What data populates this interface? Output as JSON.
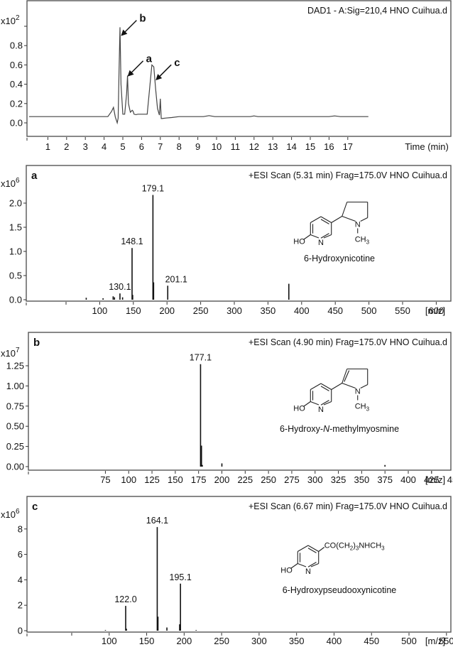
{
  "chart_data": [
    {
      "id": "chromatogram",
      "type": "line",
      "title": "DAD1 - A:Sig=210,4 HNO Cuihua.d",
      "xlabel": "Time (min)",
      "ylabel": "",
      "y_multiplier": "x10",
      "y_multiplier_exp": "2",
      "xlim": [
        0,
        18.1
      ],
      "ylim": [
        -0.12,
        1.05
      ],
      "x_ticks": [
        "1",
        "2",
        "3",
        "4",
        "5",
        "6",
        "7",
        "8",
        "9",
        "10",
        "11",
        "12",
        "13",
        "14",
        "15",
        "16",
        "17"
      ],
      "y_ticks": [
        "0.0",
        "0.2",
        "0.4",
        "0.6",
        "0.8"
      ],
      "grid": false,
      "x": [
        0,
        4.2,
        4.4,
        4.5,
        4.6,
        4.7,
        4.75,
        4.8,
        4.85,
        4.9,
        5.0,
        5.1,
        5.2,
        5.25,
        5.3,
        5.4,
        5.5,
        5.55,
        5.6,
        5.7,
        5.8,
        6.3,
        6.45,
        6.55,
        6.65,
        6.75,
        6.85,
        6.95,
        7.0,
        7.05,
        7.1,
        7.3,
        7.6,
        8.0,
        9.3,
        9.6,
        9.9,
        11.8,
        12.0,
        12.2,
        16.0,
        16.3,
        16.6,
        18.1
      ],
      "y": [
        0.065,
        0.065,
        0.12,
        0.16,
        0.06,
        0.0,
        0.05,
        0.55,
        0.99,
        0.4,
        0.09,
        0.09,
        0.3,
        0.49,
        0.2,
        0.11,
        0.13,
        0.12,
        0.09,
        0.085,
        0.09,
        0.09,
        0.4,
        0.6,
        0.58,
        0.35,
        0.15,
        0.08,
        0.25,
        0.045,
        0.045,
        0.05,
        0.055,
        0.065,
        0.065,
        0.075,
        0.065,
        0.065,
        0.072,
        0.065,
        0.065,
        0.072,
        0.065,
        0.065
      ],
      "annotations": [
        {
          "label": "b",
          "x": 4.9,
          "y": 0.9
        },
        {
          "label": "a",
          "x": 5.25,
          "y": 0.48
        },
        {
          "label": "c",
          "x": 6.75,
          "y": 0.44
        }
      ]
    },
    {
      "id": "ms-a",
      "type": "bar",
      "panel_label": "a",
      "title": "+ESI Scan (5.31 min) Frag=175.0V HNO Cuihua.d",
      "xlabel": "[m/z]",
      "y_multiplier": "x10",
      "y_multiplier_exp": "6",
      "xlim": [
        50,
        650
      ],
      "ylim": [
        0,
        2.3
      ],
      "x_ticks": [
        "100",
        "150",
        "200",
        "250",
        "300",
        "350",
        "400",
        "450",
        "500",
        "550",
        "600"
      ],
      "y_ticks": [
        "0.0",
        "0.5",
        "1.0",
        "1.5",
        "2.0"
      ],
      "peaks": [
        {
          "mz": 80,
          "intensity": 0.04
        },
        {
          "mz": 105,
          "intensity": 0.03
        },
        {
          "mz": 120,
          "intensity": 0.07
        },
        {
          "mz": 122,
          "intensity": 0.05
        },
        {
          "mz": 130.1,
          "intensity": 0.13,
          "label": "130.1"
        },
        {
          "mz": 134,
          "intensity": 0.05
        },
        {
          "mz": 148.1,
          "intensity": 1.07,
          "label": "148.1"
        },
        {
          "mz": 149,
          "intensity": 0.1
        },
        {
          "mz": 179.1,
          "intensity": 2.17,
          "label": "179.1"
        },
        {
          "mz": 180.1,
          "intensity": 0.36
        },
        {
          "mz": 201.1,
          "intensity": 0.29,
          "label": "201.1"
        },
        {
          "mz": 381,
          "intensity": 0.33
        }
      ],
      "compound": {
        "name": "6-Hydroxynicotine",
        "atoms": {
          "ho": "HO",
          "n_ring": "N",
          "n_pyr": "N",
          "ch": "CH",
          "ch_sub": "3"
        }
      }
    },
    {
      "id": "ms-b",
      "type": "bar",
      "panel_label": "b",
      "title": "+ESI Scan (4.90 min) Frag=175.0V HNO Cuihua.d",
      "xlabel": "[m/z]",
      "y_multiplier": "x10",
      "y_multiplier_exp": "7",
      "xlim": [
        65,
        495
      ],
      "ylim": [
        0,
        1.38
      ],
      "x_ticks": [
        "75",
        "100",
        "125",
        "150",
        "175",
        "200",
        "225",
        "250",
        "275",
        "300",
        "325",
        "350",
        "375",
        "400",
        "425",
        "450",
        "475"
      ],
      "y_ticks": [
        "0.00",
        "0.25",
        "0.50",
        "0.75",
        "1.00",
        "1.25"
      ],
      "peaks": [
        {
          "mz": 177.1,
          "intensity": 1.27,
          "label": "177.1"
        },
        {
          "mz": 178.1,
          "intensity": 0.26
        },
        {
          "mz": 179,
          "intensity": 0.02
        },
        {
          "mz": 200,
          "intensity": 0.04
        },
        {
          "mz": 375,
          "intensity": 0.02
        }
      ],
      "compound": {
        "name_pre": "6-Hydroxy-",
        "name_italic": "N",
        "name_post": "-methylmyosmine",
        "atoms": {
          "ho": "HO",
          "n_ring": "N",
          "n_pyr": "N",
          "ch": "CH",
          "ch_sub": "3"
        }
      }
    },
    {
      "id": "ms-c",
      "type": "bar",
      "panel_label": "c",
      "title": "+ESI Scan (6.67 min) Frag=175.0V HNO Cuihua.d",
      "xlabel": "[m/z]",
      "y_multiplier": "x10",
      "y_multiplier_exp": "6",
      "xlim": [
        50,
        580
      ],
      "ylim": [
        0,
        9
      ],
      "x_ticks": [
        "100",
        "150",
        "200",
        "250",
        "300",
        "350",
        "400",
        "450",
        "500",
        "550"
      ],
      "y_ticks": [
        "0",
        "2",
        "4",
        "6",
        "8"
      ],
      "peaks": [
        {
          "mz": 95,
          "intensity": 0.05
        },
        {
          "mz": 122.0,
          "intensity": 1.95,
          "label": "122.0"
        },
        {
          "mz": 123,
          "intensity": 0.15
        },
        {
          "mz": 164.1,
          "intensity": 8.15,
          "label": "164.1"
        },
        {
          "mz": 165.1,
          "intensity": 1.1
        },
        {
          "mz": 177,
          "intensity": 0.25
        },
        {
          "mz": 194,
          "intensity": 0.5
        },
        {
          "mz": 195.1,
          "intensity": 3.7,
          "label": "195.1"
        },
        {
          "mz": 216,
          "intensity": 0.05
        }
      ],
      "compound": {
        "name": "6-Hydroxypseudooxynicotine",
        "atoms": {
          "ho": "HO",
          "n_ring": "N",
          "sidechain_a": "CO(CH",
          "sidechain_sub1": "2",
          "sidechain_b": ")",
          "sidechain_sub2": "3",
          "sidechain_c": "NHCH",
          "sidechain_sub3": "3"
        }
      }
    }
  ]
}
